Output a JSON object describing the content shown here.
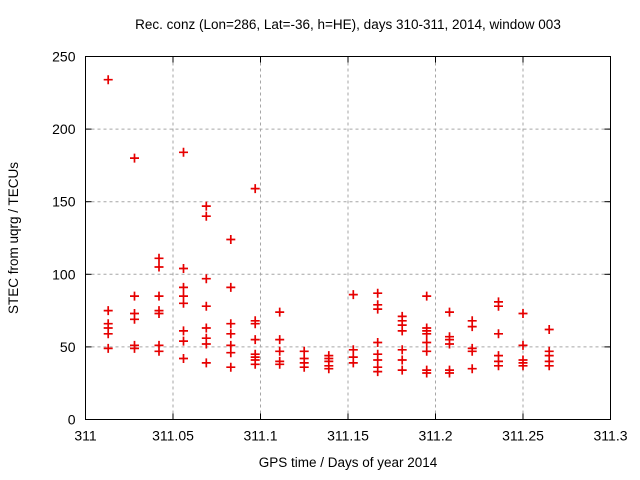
{
  "chart_data": {
    "type": "scatter",
    "title": "Rec. conz (Lon=286, Lat=-36, h=HE), days 310-311, 2014, window 003",
    "xlabel": "GPS time / Days of year 2014",
    "ylabel": "STEC from uqrg / TECUs",
    "xlim": [
      311,
      311.3
    ],
    "ylim": [
      0,
      250
    ],
    "x_ticks": [
      311,
      311.05,
      311.1,
      311.15,
      311.2,
      311.25,
      311.3
    ],
    "x_tick_labels": [
      "311",
      "311.05",
      "311.1",
      "311.15",
      "311.2",
      "311.25",
      "311.3"
    ],
    "y_ticks": [
      0,
      50,
      100,
      150,
      200,
      250
    ],
    "y_tick_labels": [
      "0",
      "50",
      "100",
      "150",
      "200",
      "250"
    ],
    "grid": true,
    "legend_position": "none",
    "marker": {
      "shape": "plus",
      "color": "#e60000",
      "size": 9
    },
    "series": [
      {
        "name": "STEC",
        "points": [
          [
            311.013,
            234
          ],
          [
            311.013,
            75
          ],
          [
            311.013,
            66
          ],
          [
            311.013,
            63
          ],
          [
            311.013,
            59
          ],
          [
            311.013,
            49
          ],
          [
            311.028,
            180
          ],
          [
            311.028,
            85
          ],
          [
            311.028,
            73
          ],
          [
            311.028,
            69
          ],
          [
            311.028,
            51
          ],
          [
            311.028,
            49
          ],
          [
            311.042,
            111
          ],
          [
            311.042,
            105
          ],
          [
            311.042,
            85
          ],
          [
            311.042,
            75
          ],
          [
            311.042,
            73
          ],
          [
            311.042,
            51
          ],
          [
            311.042,
            47
          ],
          [
            311.056,
            184
          ],
          [
            311.056,
            104
          ],
          [
            311.056,
            91
          ],
          [
            311.056,
            85
          ],
          [
            311.056,
            80
          ],
          [
            311.056,
            61
          ],
          [
            311.056,
            54
          ],
          [
            311.056,
            42
          ],
          [
            311.069,
            147
          ],
          [
            311.069,
            140
          ],
          [
            311.069,
            97
          ],
          [
            311.069,
            78
          ],
          [
            311.069,
            63
          ],
          [
            311.069,
            56
          ],
          [
            311.069,
            52
          ],
          [
            311.069,
            39
          ],
          [
            311.083,
            124
          ],
          [
            311.083,
            91
          ],
          [
            311.083,
            66
          ],
          [
            311.083,
            59
          ],
          [
            311.083,
            51
          ],
          [
            311.083,
            46
          ],
          [
            311.083,
            36
          ],
          [
            311.097,
            159
          ],
          [
            311.097,
            68
          ],
          [
            311.097,
            66
          ],
          [
            311.097,
            55
          ],
          [
            311.097,
            45
          ],
          [
            311.097,
            43
          ],
          [
            311.097,
            41
          ],
          [
            311.097,
            38
          ],
          [
            311.111,
            74
          ],
          [
            311.111,
            55
          ],
          [
            311.111,
            47
          ],
          [
            311.111,
            40
          ],
          [
            311.111,
            38
          ],
          [
            311.125,
            47
          ],
          [
            311.125,
            42
          ],
          [
            311.125,
            39
          ],
          [
            311.125,
            36
          ],
          [
            311.139,
            44
          ],
          [
            311.139,
            42
          ],
          [
            311.139,
            40
          ],
          [
            311.139,
            37
          ],
          [
            311.139,
            35
          ],
          [
            311.153,
            86
          ],
          [
            311.153,
            48
          ],
          [
            311.153,
            43
          ],
          [
            311.153,
            39
          ],
          [
            311.167,
            87
          ],
          [
            311.167,
            79
          ],
          [
            311.167,
            76
          ],
          [
            311.167,
            53
          ],
          [
            311.167,
            45
          ],
          [
            311.167,
            41
          ],
          [
            311.167,
            36
          ],
          [
            311.167,
            33
          ],
          [
            311.181,
            71
          ],
          [
            311.181,
            68
          ],
          [
            311.181,
            65
          ],
          [
            311.181,
            61
          ],
          [
            311.181,
            48
          ],
          [
            311.181,
            41
          ],
          [
            311.181,
            34
          ],
          [
            311.195,
            85
          ],
          [
            311.195,
            63
          ],
          [
            311.195,
            61
          ],
          [
            311.195,
            59
          ],
          [
            311.195,
            53
          ],
          [
            311.195,
            47
          ],
          [
            311.195,
            34
          ],
          [
            311.195,
            32
          ],
          [
            311.208,
            74
          ],
          [
            311.208,
            57
          ],
          [
            311.208,
            55
          ],
          [
            311.208,
            52
          ],
          [
            311.208,
            34
          ],
          [
            311.208,
            32
          ],
          [
            311.221,
            68
          ],
          [
            311.221,
            64
          ],
          [
            311.221,
            49
          ],
          [
            311.221,
            47
          ],
          [
            311.221,
            35
          ],
          [
            311.236,
            81
          ],
          [
            311.236,
            78
          ],
          [
            311.236,
            59
          ],
          [
            311.236,
            44
          ],
          [
            311.236,
            40
          ],
          [
            311.236,
            37
          ],
          [
            311.25,
            73
          ],
          [
            311.25,
            51
          ],
          [
            311.25,
            41
          ],
          [
            311.25,
            39
          ],
          [
            311.25,
            37
          ],
          [
            311.265,
            62
          ],
          [
            311.265,
            47
          ],
          [
            311.265,
            44
          ],
          [
            311.265,
            40
          ],
          [
            311.265,
            37
          ]
        ]
      }
    ]
  }
}
